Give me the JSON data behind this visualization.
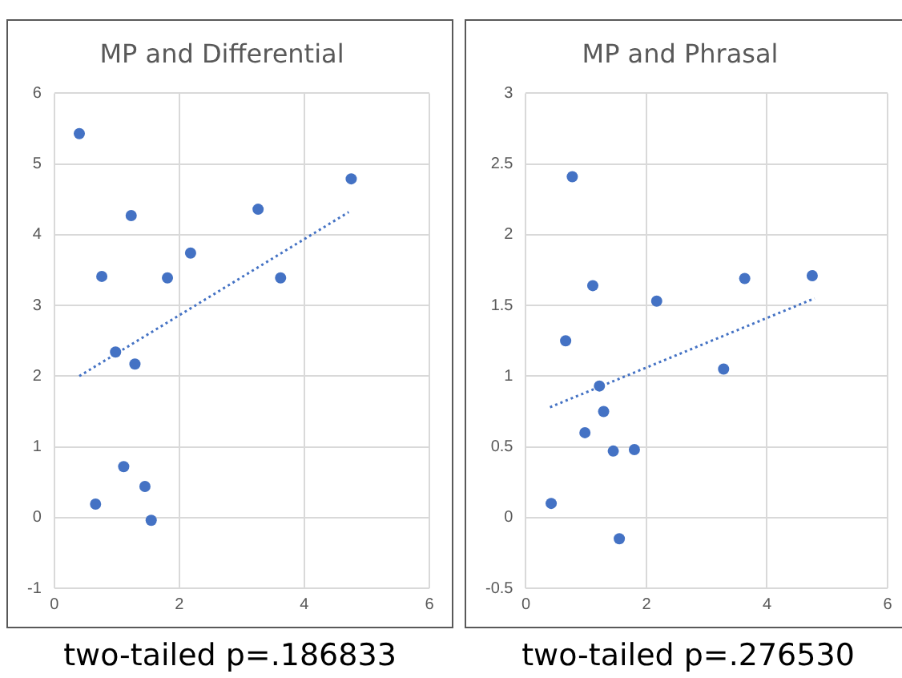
{
  "chart_data": [
    {
      "type": "scatter",
      "title": "MP and Differential",
      "marker": "circle",
      "grid": true,
      "legend": false,
      "xlim": [
        0,
        6
      ],
      "xticks": [
        0,
        2,
        4,
        6
      ],
      "ylim": [
        -1,
        6
      ],
      "yticks": [
        -1,
        0,
        1,
        2,
        3,
        4,
        5,
        6
      ],
      "annotations": [
        "two-tailed p=.186833"
      ],
      "series": [
        {
          "color": "#4472c4",
          "x": [
            0.4,
            1.23,
            0.76,
            1.81,
            2.18,
            3.26,
            3.62,
            4.75,
            0.98,
            1.29,
            1.11,
            1.45,
            0.66,
            1.55
          ],
          "values": [
            5.43,
            4.27,
            3.41,
            3.39,
            3.74,
            4.36,
            3.39,
            4.79,
            2.34,
            2.17,
            0.72,
            0.44,
            0.19,
            -0.04
          ]
        },
        {
          "type": "line",
          "color": "#4472c4",
          "line_style": "dotted",
          "marker": "none",
          "x": [
            0.4,
            4.71
          ],
          "values": [
            2.0,
            4.32
          ]
        }
      ]
    },
    {
      "type": "scatter",
      "title": "MP and Phrasal",
      "marker": "circle",
      "grid": true,
      "legend": false,
      "xlim": [
        0,
        6
      ],
      "xticks": [
        0,
        2,
        4,
        6
      ],
      "ylim": [
        -0.5,
        3
      ],
      "yticks": [
        -0.5,
        0,
        0.5,
        1,
        1.5,
        2,
        2.5,
        3
      ],
      "annotations": [
        "two-tailed p=.276530"
      ],
      "series": [
        {
          "color": "#4472c4",
          "x": [
            0.77,
            1.11,
            0.66,
            2.17,
            3.63,
            4.75,
            3.28,
            1.22,
            1.29,
            0.98,
            1.45,
            1.8,
            0.42,
            1.55
          ],
          "values": [
            2.41,
            1.64,
            1.25,
            1.53,
            1.69,
            1.71,
            1.05,
            0.93,
            0.75,
            0.6,
            0.47,
            0.48,
            0.1,
            -0.15
          ]
        },
        {
          "type": "line",
          "color": "#4472c4",
          "line_style": "dotted",
          "marker": "none",
          "x": [
            0.4,
            4.79
          ],
          "values": [
            0.78,
            1.55
          ]
        }
      ]
    }
  ]
}
